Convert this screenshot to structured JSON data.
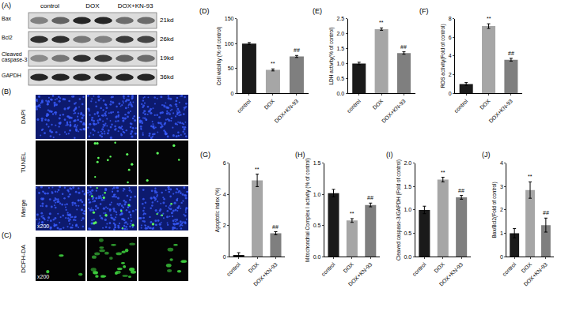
{
  "figure_panels": {
    "blot": {
      "label": "(A)",
      "groups": [
        "control",
        "DOX",
        "DOX+KN-93"
      ],
      "proteins": [
        {
          "name": "Bax",
          "size": "21kd"
        },
        {
          "name": "Bcl2",
          "size": "26kd"
        },
        {
          "name": "Cleaved caspase-3",
          "size": "19kd"
        },
        {
          "name": "GAPDH",
          "size": "36kd"
        }
      ]
    },
    "tunel": {
      "label": "(B)",
      "rows": [
        "DAPI",
        "TUNEL",
        "Merge"
      ],
      "magnification": "x200"
    },
    "ros": {
      "label": "(C)",
      "row": "DCFH-DA",
      "magnification": "x200"
    }
  },
  "chart_data": [
    {
      "type": "bar",
      "panel_label": "(D)",
      "ylabel": "Cell viability (% of control)",
      "categories": [
        "control",
        "DOX",
        "DOX+KN-93"
      ],
      "values": [
        100,
        47,
        74
      ],
      "errors": [
        2,
        2,
        2
      ],
      "colors": [
        "#1a1a1a",
        "#a6a6a6",
        "#7f7f7f"
      ],
      "significance": [
        null,
        "**",
        "##"
      ],
      "ylim": [
        0,
        150
      ],
      "yticks": [
        0,
        50,
        100,
        150
      ],
      "grid": false
    },
    {
      "type": "bar",
      "panel_label": "(E)",
      "ylabel": "LDH activity(% of control)",
      "categories": [
        "control",
        "DOX",
        "DOX+KN-93"
      ],
      "values": [
        1.0,
        2.15,
        1.35
      ],
      "errors": [
        0.04,
        0.04,
        0.04
      ],
      "colors": [
        "#1a1a1a",
        "#a6a6a6",
        "#7f7f7f"
      ],
      "significance": [
        null,
        "**",
        "##"
      ],
      "ylim": [
        0,
        2.5
      ],
      "yticks": [
        {
          "value": 0,
          "label": "0.0"
        },
        0.5,
        {
          "value": 1,
          "label": "1.0"
        },
        1.5,
        {
          "value": 2,
          "label": "2.0"
        },
        2.5
      ],
      "grid": false
    },
    {
      "type": "bar",
      "panel_label": "(F)",
      "ylabel": "ROS activity(Fold of control)",
      "categories": [
        "control",
        "DOX",
        "DOX+KN-93"
      ],
      "values": [
        1.0,
        7.2,
        3.6
      ],
      "errors": [
        0.15,
        0.25,
        0.15
      ],
      "colors": [
        "#1a1a1a",
        "#a6a6a6",
        "#7f7f7f"
      ],
      "significance": [
        null,
        "**",
        "##"
      ],
      "ylim": [
        0,
        8
      ],
      "yticks": [
        0,
        2,
        4,
        6,
        8
      ],
      "grid": false
    },
    {
      "type": "bar",
      "panel_label": "(G)",
      "ylabel": "Apoptotic index (%)",
      "categories": [
        "control",
        "DOX",
        "DOX+KN-93"
      ],
      "values": [
        0.1,
        4.9,
        1.5
      ],
      "errors": [
        0.15,
        0.4,
        0.1
      ],
      "colors": [
        "#1a1a1a",
        "#a6a6a6",
        "#7f7f7f"
      ],
      "significance": [
        null,
        "**",
        "##"
      ],
      "ylim": [
        0,
        6
      ],
      "yticks": [
        0,
        2,
        4,
        6
      ],
      "grid": false
    },
    {
      "type": "bar",
      "panel_label": "(H)",
      "ylabel": "Mitochondrial Complex I activity (% of control)",
      "categories": [
        "control",
        "DOX",
        "DOX+KN-93"
      ],
      "values": [
        1.02,
        0.58,
        0.83
      ],
      "errors": [
        0.06,
        0.03,
        0.03
      ],
      "colors": [
        "#1a1a1a",
        "#a6a6a6",
        "#7f7f7f"
      ],
      "significance": [
        null,
        "**",
        "##"
      ],
      "ylim": [
        0,
        1.5
      ],
      "yticks": [
        {
          "value": 0,
          "label": "0.0"
        },
        0.5,
        {
          "value": 1,
          "label": "1.0"
        },
        1.5
      ],
      "grid": false
    },
    {
      "type": "bar",
      "panel_label": "(I)",
      "ylabel": "Cleaved caspase-3/GAPDH (Fold of control)",
      "categories": [
        "control",
        "DOX",
        "DOX+KN-93"
      ],
      "values": [
        1.0,
        1.65,
        1.27
      ],
      "errors": [
        0.08,
        0.05,
        0.04
      ],
      "colors": [
        "#1a1a1a",
        "#a6a6a6",
        "#7f7f7f"
      ],
      "significance": [
        null,
        "**",
        "##"
      ],
      "ylim": [
        0,
        2
      ],
      "yticks": [
        {
          "value": 0,
          "label": "0.0"
        },
        0.5,
        {
          "value": 1,
          "label": "1.0"
        },
        1.5,
        {
          "value": 2,
          "label": "2.0"
        }
      ],
      "grid": false
    },
    {
      "type": "bar",
      "panel_label": "(J)",
      "ylabel": "Bax/Bcl2(Fold of control)",
      "categories": [
        "control",
        "DOX",
        "DOX+KN-93"
      ],
      "values": [
        1.0,
        2.85,
        1.35
      ],
      "errors": [
        0.2,
        0.35,
        0.3
      ],
      "colors": [
        "#1a1a1a",
        "#a6a6a6",
        "#7f7f7f"
      ],
      "significance": [
        null,
        "**",
        "##"
      ],
      "ylim": [
        0,
        4
      ],
      "yticks": [
        0,
        1,
        2,
        3,
        4
      ],
      "grid": false
    }
  ]
}
